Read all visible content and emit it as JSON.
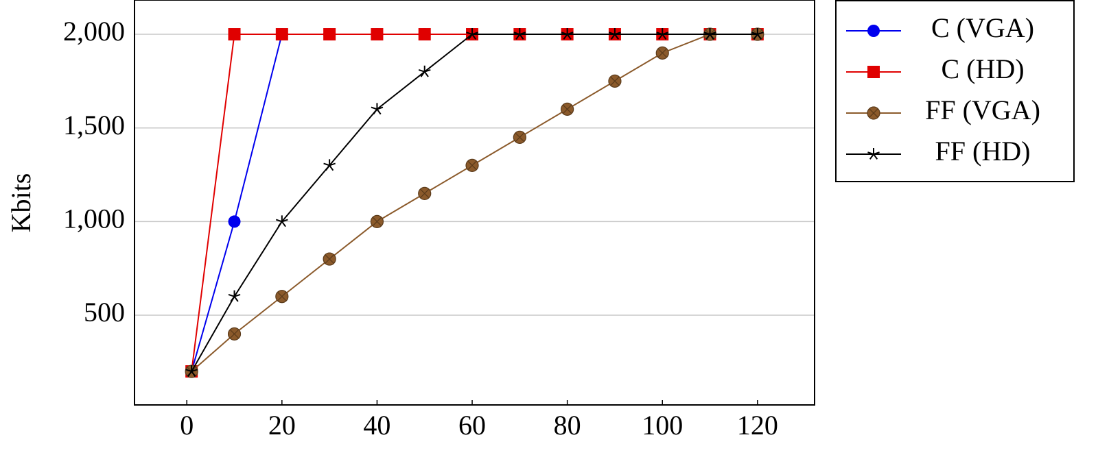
{
  "chart_data": {
    "type": "line",
    "ylabel": "Kbits",
    "x": [
      1,
      10,
      20,
      30,
      40,
      50,
      60,
      70,
      80,
      90,
      100,
      110,
      120
    ],
    "series": [
      {
        "name": "C (VGA)",
        "color": "#0000ee",
        "marker": "circle",
        "values": [
          200,
          1000,
          2000,
          2000,
          2000,
          2000,
          2000,
          2000,
          2000,
          2000,
          2000,
          2000,
          2000
        ]
      },
      {
        "name": "C (HD)",
        "color": "#e00000",
        "marker": "square",
        "values": [
          200,
          2000,
          2000,
          2000,
          2000,
          2000,
          2000,
          2000,
          2000,
          2000,
          2000,
          2000,
          2000
        ]
      },
      {
        "name": "FF (VGA)",
        "color": "#8b5a2b",
        "marker": "otimes",
        "values": [
          200,
          400,
          600,
          800,
          1000,
          1150,
          1300,
          1450,
          1600,
          1750,
          1900,
          2000,
          2000
        ]
      },
      {
        "name": "FF (HD)",
        "color": "#000000",
        "marker": "star",
        "values": [
          200,
          600,
          1000,
          1300,
          1600,
          1800,
          2000,
          2000,
          2000,
          2000,
          2000,
          2000,
          2000
        ]
      }
    ],
    "xlim": [
      -11,
      132
    ],
    "ylim": [
      21,
      2183
    ],
    "xticks": [
      0,
      20,
      40,
      60,
      80,
      100,
      120
    ],
    "yticks": [
      500,
      {
        "value": 1000,
        "label": "1,000"
      },
      {
        "value": 1500,
        "label": "1,500"
      },
      {
        "value": 2000,
        "label": "2,000"
      }
    ],
    "grid": true,
    "legend": "outside-right"
  }
}
